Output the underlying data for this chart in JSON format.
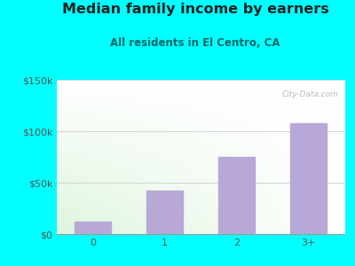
{
  "title": "Median family income by earners",
  "subtitle": "All residents in El Centro, CA",
  "categories": [
    "0",
    "1",
    "2",
    "3+"
  ],
  "values": [
    12000,
    42000,
    75000,
    108000
  ],
  "bar_color": "#b8a8d8",
  "outer_bg": "#00ffff",
  "title_color": "#222222",
  "subtitle_color": "#006666",
  "ytick_labels": [
    "$0",
    "$50k",
    "$100k",
    "$150k"
  ],
  "ytick_values": [
    0,
    50000,
    100000,
    150000
  ],
  "ylim": [
    0,
    150000
  ],
  "watermark": "City-Data.com",
  "title_fontsize": 11.5,
  "subtitle_fontsize": 8.5,
  "tick_fontsize": 8
}
